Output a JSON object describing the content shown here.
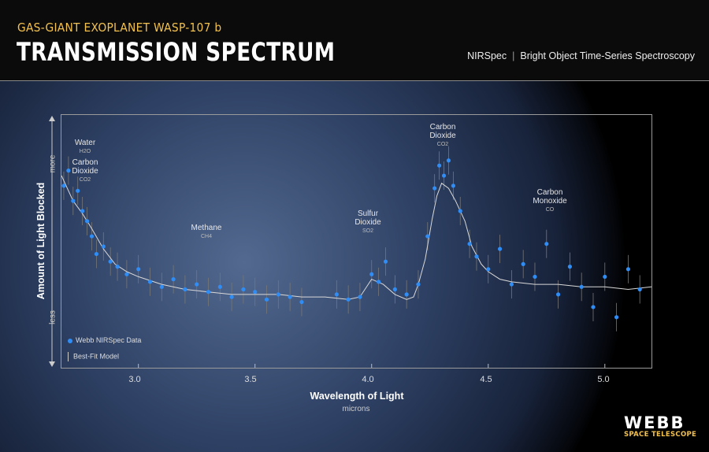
{
  "header": {
    "subtitle": "GAS-GIANT EXOPLANET WASP-107 b",
    "title": "TRANSMISSION SPECTRUM",
    "instrument": "NIRSpec",
    "mode": "Bright Object Time-Series Spectroscopy"
  },
  "branding": {
    "logo": "WEBB",
    "logo_sub": "SPACE TELESCOPE"
  },
  "colors": {
    "accent": "#f2c14e",
    "data_points": "#2f8df5",
    "model_line": "#d8d8d8"
  },
  "chart_data": {
    "type": "scatter",
    "xlabel": "Wavelength of Light",
    "xunit": "microns",
    "ylabel": "Amount of Light Blocked",
    "y_more": "more",
    "y_less": "less",
    "xlim": [
      2.67,
      5.2
    ],
    "ylim": [
      0,
      1
    ],
    "x_ticks": [
      "3.0",
      "3.5",
      "4.0",
      "4.5",
      "5.0"
    ],
    "grid": false,
    "legend_position": "bottom-left",
    "legend": [
      "Webb NIRSpec Data",
      "Best-Fit Model"
    ],
    "annotations": [
      {
        "label": "Water",
        "symbol": "H2O",
        "x": 2.79
      },
      {
        "label": "Carbon Dioxide",
        "symbol": "CO2",
        "x": 2.79
      },
      {
        "label": "Methane",
        "symbol": "CH4",
        "x": 3.3
      },
      {
        "label": "Sulfur Dioxide",
        "symbol": "SO2",
        "x": 4.02
      },
      {
        "label": "Carbon Dioxide",
        "symbol": "CO2",
        "x": 4.32
      },
      {
        "label": "Carbon Monoxide",
        "symbol": "CO",
        "x": 4.78
      }
    ],
    "model": {
      "x": [
        2.67,
        2.72,
        2.76,
        2.8,
        2.85,
        2.9,
        2.95,
        3.0,
        3.1,
        3.2,
        3.3,
        3.4,
        3.5,
        3.6,
        3.7,
        3.8,
        3.9,
        3.95,
        4.0,
        4.05,
        4.1,
        4.15,
        4.18,
        4.2,
        4.23,
        4.26,
        4.28,
        4.3,
        4.33,
        4.36,
        4.4,
        4.43,
        4.47,
        4.5,
        4.55,
        4.6,
        4.7,
        4.8,
        4.9,
        5.0,
        5.1,
        5.2
      ],
      "y": [
        0.76,
        0.66,
        0.61,
        0.55,
        0.47,
        0.41,
        0.38,
        0.36,
        0.33,
        0.31,
        0.3,
        0.29,
        0.29,
        0.29,
        0.28,
        0.28,
        0.27,
        0.28,
        0.35,
        0.33,
        0.29,
        0.27,
        0.28,
        0.33,
        0.43,
        0.59,
        0.68,
        0.73,
        0.71,
        0.66,
        0.58,
        0.48,
        0.41,
        0.38,
        0.35,
        0.34,
        0.33,
        0.33,
        0.32,
        0.32,
        0.31,
        0.32
      ]
    },
    "data": {
      "x": [
        2.68,
        2.7,
        2.72,
        2.74,
        2.76,
        2.78,
        2.8,
        2.82,
        2.85,
        2.88,
        2.91,
        2.95,
        3.0,
        3.05,
        3.1,
        3.15,
        3.2,
        3.25,
        3.3,
        3.35,
        3.4,
        3.45,
        3.5,
        3.55,
        3.6,
        3.65,
        3.7,
        3.85,
        3.9,
        3.95,
        4.0,
        4.03,
        4.06,
        4.1,
        4.15,
        4.2,
        4.24,
        4.27,
        4.29,
        4.31,
        4.33,
        4.35,
        4.38,
        4.42,
        4.45,
        4.5,
        4.55,
        4.6,
        4.65,
        4.7,
        4.75,
        4.8,
        4.85,
        4.9,
        4.95,
        5.0,
        5.05,
        5.1,
        5.15
      ],
      "y": [
        0.72,
        0.78,
        0.66,
        0.7,
        0.62,
        0.58,
        0.52,
        0.45,
        0.48,
        0.42,
        0.4,
        0.37,
        0.39,
        0.34,
        0.32,
        0.35,
        0.31,
        0.33,
        0.3,
        0.32,
        0.28,
        0.31,
        0.3,
        0.27,
        0.29,
        0.28,
        0.26,
        0.29,
        0.27,
        0.28,
        0.37,
        0.34,
        0.42,
        0.31,
        0.29,
        0.33,
        0.52,
        0.71,
        0.8,
        0.76,
        0.82,
        0.72,
        0.62,
        0.49,
        0.44,
        0.39,
        0.47,
        0.33,
        0.41,
        0.36,
        0.49,
        0.29,
        0.4,
        0.32,
        0.24,
        0.36,
        0.2,
        0.39,
        0.31
      ]
    }
  }
}
